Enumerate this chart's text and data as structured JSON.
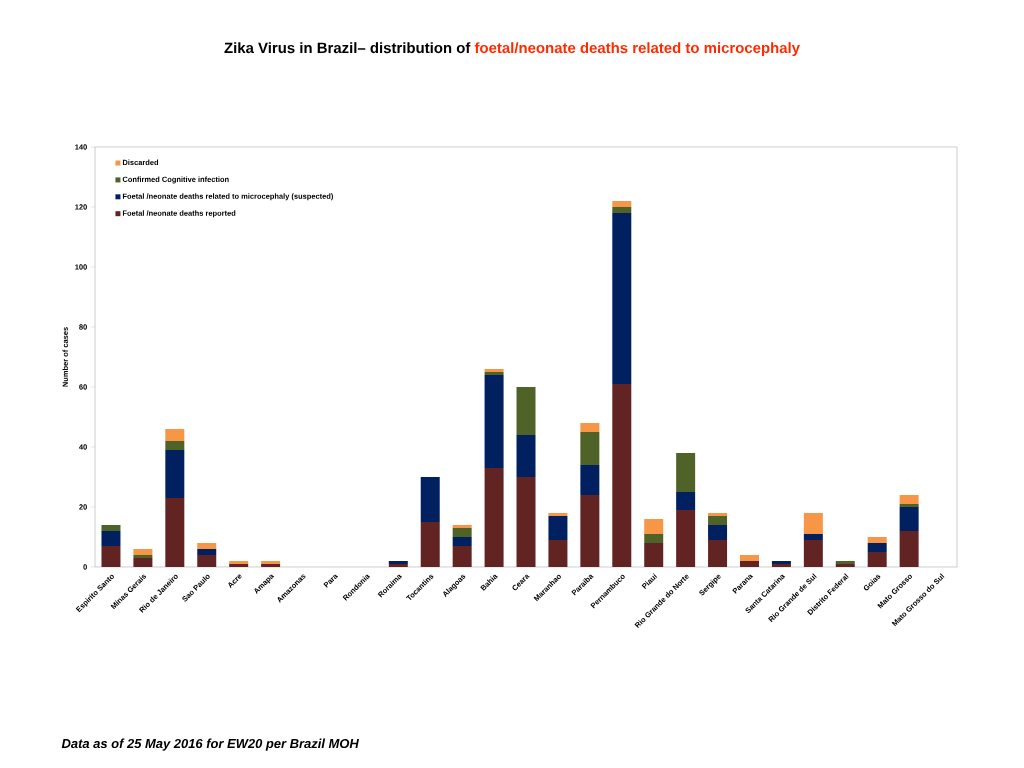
{
  "chart_data": {
    "type": "bar",
    "stacked": true,
    "title": "Zika Virus in Brazil– distribution of",
    "subtitle": "foetal/neonate deaths related to microcephaly",
    "ylabel": "Number of cases",
    "categories": [
      "Espirito Santo",
      "Minas Gerais",
      "Rio de Janeiro",
      "Sao Paulo",
      "Acre",
      "Amapa",
      "Amazonas",
      "Para",
      "Rondonia",
      "Roraima",
      "Tocantins",
      "Alagoas",
      "Bahia",
      "Ceara",
      "Maranhao",
      "Paraiba",
      "Pernambuco",
      "Piaui",
      "Rio Grande do Norte",
      "Sergipe",
      "Parana",
      "Santa Catarina",
      "Rio Grande de Sul",
      "Distrito Federal",
      "Goias",
      "Mato Grosso",
      "Mato Grosso do Sul"
    ],
    "series": [
      {
        "name": "Foetal /neonate deaths reported",
        "color": "#622423",
        "values": [
          7,
          3,
          23,
          4,
          1,
          1,
          0,
          0,
          0,
          1,
          15,
          7,
          33,
          30,
          9,
          24,
          61,
          8,
          19,
          9,
          2,
          1,
          9,
          1,
          5,
          12,
          0
        ]
      },
      {
        "name": "Foetal /neonate deaths related to microcephaly (suspected)",
        "color": "#002060",
        "values": [
          5,
          0,
          16,
          2,
          0,
          0,
          0,
          0,
          0,
          1,
          15,
          3,
          31,
          14,
          8,
          10,
          57,
          0,
          6,
          5,
          0,
          1,
          2,
          0,
          3,
          8,
          0
        ]
      },
      {
        "name": "Confirmed Cognitive infection",
        "color": "#4f6228",
        "values": [
          2,
          1,
          3,
          0,
          0,
          0,
          0,
          0,
          0,
          0,
          0,
          3,
          1,
          16,
          0,
          11,
          2,
          3,
          13,
          3,
          0,
          0,
          0,
          1,
          0,
          1,
          0
        ]
      },
      {
        "name": "Discarded",
        "color": "#f79646",
        "values": [
          0,
          2,
          4,
          2,
          1,
          1,
          0,
          0,
          0,
          0,
          0,
          1,
          1,
          0,
          1,
          3,
          2,
          5,
          0,
          1,
          2,
          0,
          7,
          0,
          2,
          3,
          0
        ]
      }
    ],
    "ylim": [
      0,
      140
    ],
    "yticks": [
      0,
      20,
      40,
      60,
      80,
      100,
      120,
      140
    ],
    "legend": "top left",
    "annotations": [
      "Data as of 25 May 2016 for EW20 per Brazil MOH"
    ]
  }
}
